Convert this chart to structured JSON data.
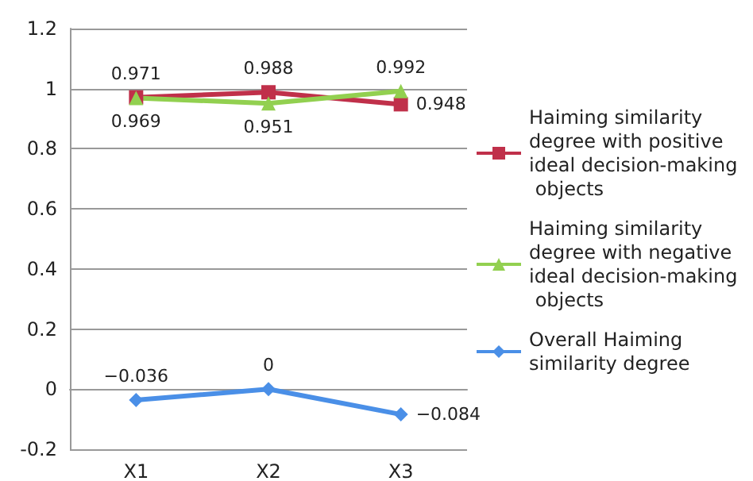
{
  "chart_data": {
    "type": "line",
    "categories": [
      "X1",
      "X2",
      "X3"
    ],
    "series": [
      {
        "name": "Haiming similarity degree with positive ideal decision-making objects",
        "color": "#c0304a",
        "marker": "square",
        "values": [
          0.971,
          0.988,
          0.948
        ],
        "value_labels": [
          "0.971",
          "0.988",
          "0.948"
        ]
      },
      {
        "name": "Haiming similarity degree with negative ideal decision-making objects",
        "color": "#92d050",
        "marker": "triangle",
        "values": [
          0.969,
          0.951,
          0.992
        ],
        "value_labels": [
          "0.969",
          "0.951",
          "0.992"
        ]
      },
      {
        "name": "Overall Haiming similarity degree",
        "color": "#4a8fe7",
        "marker": "diamond",
        "values": [
          -0.036,
          0,
          -0.084
        ],
        "value_labels": [
          "−0.036",
          "0",
          "−0.084"
        ]
      }
    ],
    "ylim": [
      -0.2,
      1.2
    ],
    "yticks": [
      -0.2,
      0,
      0.2,
      0.4,
      0.6,
      0.8,
      1,
      1.2
    ],
    "grid": "y",
    "legend": "right"
  }
}
